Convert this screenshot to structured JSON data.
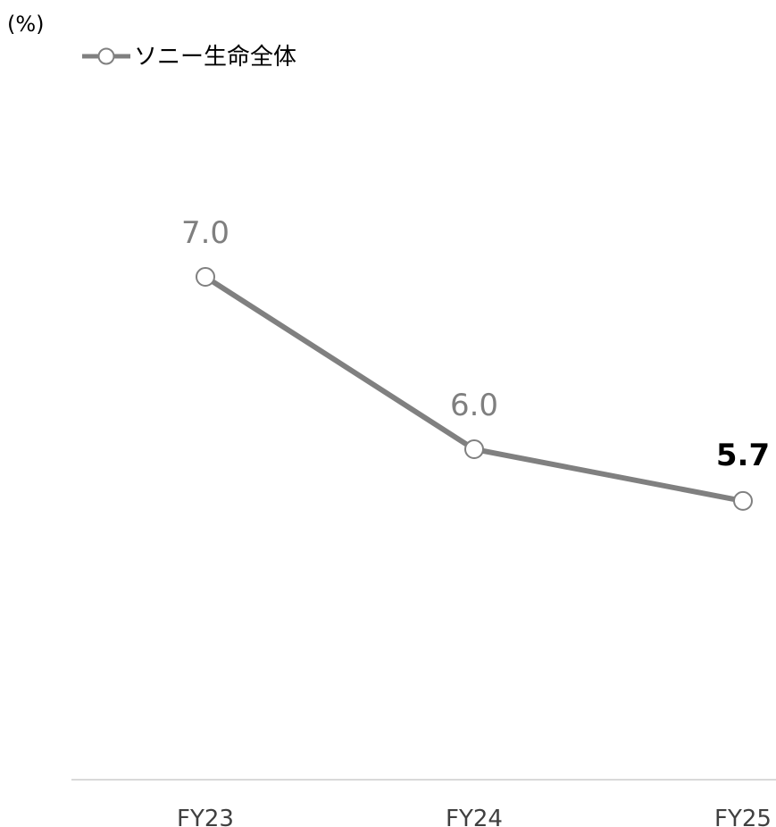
{
  "chart_data": {
    "type": "line",
    "unit_label": "(%)",
    "categories": [
      "FY23",
      "FY24",
      "FY25"
    ],
    "series": [
      {
        "name": "ソニー生命全体",
        "values": [
          7.0,
          6.0,
          5.7
        ],
        "data_labels": [
          "7.0",
          "6.0",
          "5.7"
        ],
        "emphasized_index": 2
      }
    ],
    "ylim": [
      4.0,
      8.0
    ],
    "grid": false,
    "legend_position": "top-left",
    "colors": {
      "line": "#808080",
      "marker_fill": "#ffffff",
      "data_label": "#7f7f7f",
      "emphasis_label": "#000000",
      "axis": "#d9d9d9"
    }
  }
}
